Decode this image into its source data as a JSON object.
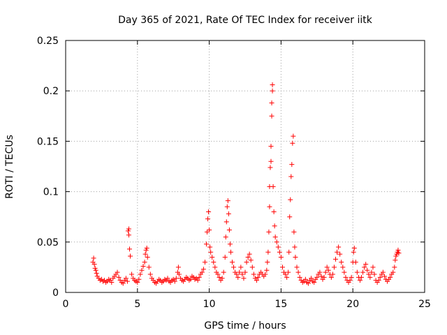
{
  "chart_data": {
    "type": "scatter",
    "title": "Day 365 of 2021, Rate Of TEC Index for receiver iitk",
    "xlabel": "GPS time / hours",
    "ylabel": "ROTI / TECUs",
    "xlim": [
      0,
      25
    ],
    "ylim": [
      0,
      0.25
    ],
    "x_ticks": [
      0,
      5,
      10,
      15,
      20,
      25
    ],
    "x_tick_labels": [
      "0",
      "5",
      "10",
      "15",
      "20",
      "25"
    ],
    "y_ticks": [
      0,
      0.05,
      0.1,
      0.15,
      0.2,
      0.25
    ],
    "y_tick_labels": [
      "0",
      "0.05",
      "0.1",
      "0.15",
      "0.2",
      "0.25"
    ],
    "grid": true,
    "marker": "plus",
    "color": "#ff0000",
    "series": [
      {
        "points": [
          [
            1.9,
            0.03
          ],
          [
            1.95,
            0.034
          ],
          [
            2.0,
            0.028
          ],
          [
            2.05,
            0.024
          ],
          [
            2.1,
            0.022
          ],
          [
            2.15,
            0.019
          ],
          [
            2.2,
            0.016
          ],
          [
            2.3,
            0.014
          ],
          [
            2.4,
            0.012
          ],
          [
            2.5,
            0.013
          ],
          [
            2.6,
            0.011
          ],
          [
            2.7,
            0.012
          ],
          [
            2.8,
            0.01
          ],
          [
            2.9,
            0.011
          ],
          [
            3.0,
            0.013
          ],
          [
            3.1,
            0.012
          ],
          [
            3.2,
            0.01
          ],
          [
            3.3,
            0.014
          ],
          [
            3.4,
            0.016
          ],
          [
            3.5,
            0.018
          ],
          [
            3.6,
            0.02
          ],
          [
            3.7,
            0.015
          ],
          [
            3.8,
            0.012
          ],
          [
            3.9,
            0.01
          ],
          [
            4.0,
            0.009
          ],
          [
            4.1,
            0.012
          ],
          [
            4.2,
            0.014
          ],
          [
            4.3,
            0.011
          ],
          [
            4.35,
            0.061
          ],
          [
            4.4,
            0.063
          ],
          [
            4.4,
            0.057
          ],
          [
            4.45,
            0.043
          ],
          [
            4.5,
            0.036
          ],
          [
            4.6,
            0.018
          ],
          [
            4.7,
            0.014
          ],
          [
            4.8,
            0.012
          ],
          [
            4.9,
            0.011
          ],
          [
            5.0,
            0.01
          ],
          [
            5.1,
            0.013
          ],
          [
            5.2,
            0.018
          ],
          [
            5.3,
            0.022
          ],
          [
            5.4,
            0.026
          ],
          [
            5.5,
            0.03
          ],
          [
            5.55,
            0.038
          ],
          [
            5.6,
            0.042
          ],
          [
            5.65,
            0.044
          ],
          [
            5.7,
            0.035
          ],
          [
            5.8,
            0.025
          ],
          [
            5.9,
            0.018
          ],
          [
            6.0,
            0.014
          ],
          [
            6.1,
            0.012
          ],
          [
            6.2,
            0.01
          ],
          [
            6.3,
            0.009
          ],
          [
            6.4,
            0.011
          ],
          [
            6.5,
            0.013
          ],
          [
            6.6,
            0.012
          ],
          [
            6.7,
            0.01
          ],
          [
            6.8,
            0.011
          ],
          [
            6.9,
            0.013
          ],
          [
            7.0,
            0.012
          ],
          [
            7.1,
            0.014
          ],
          [
            7.2,
            0.011
          ],
          [
            7.3,
            0.01
          ],
          [
            7.4,
            0.012
          ],
          [
            7.5,
            0.013
          ],
          [
            7.6,
            0.011
          ],
          [
            7.7,
            0.014
          ],
          [
            7.8,
            0.02
          ],
          [
            7.85,
            0.025
          ],
          [
            7.9,
            0.018
          ],
          [
            8.0,
            0.014
          ],
          [
            8.1,
            0.012
          ],
          [
            8.2,
            0.011
          ],
          [
            8.3,
            0.013
          ],
          [
            8.4,
            0.015
          ],
          [
            8.5,
            0.014
          ],
          [
            8.6,
            0.012
          ],
          [
            8.7,
            0.013
          ],
          [
            8.8,
            0.016
          ],
          [
            8.9,
            0.015
          ],
          [
            9.0,
            0.013
          ],
          [
            9.1,
            0.014
          ],
          [
            9.2,
            0.012
          ],
          [
            9.3,
            0.015
          ],
          [
            9.4,
            0.018
          ],
          [
            9.5,
            0.02
          ],
          [
            9.6,
            0.023
          ],
          [
            9.7,
            0.03
          ],
          [
            9.8,
            0.048
          ],
          [
            9.85,
            0.06
          ],
          [
            9.9,
            0.073
          ],
          [
            9.95,
            0.08
          ],
          [
            10.0,
            0.062
          ],
          [
            10.05,
            0.045
          ],
          [
            10.1,
            0.04
          ],
          [
            10.2,
            0.035
          ],
          [
            10.3,
            0.03
          ],
          [
            10.4,
            0.025
          ],
          [
            10.5,
            0.02
          ],
          [
            10.6,
            0.018
          ],
          [
            10.7,
            0.015
          ],
          [
            10.8,
            0.012
          ],
          [
            10.9,
            0.014
          ],
          [
            11.0,
            0.02
          ],
          [
            11.1,
            0.035
          ],
          [
            11.15,
            0.055
          ],
          [
            11.2,
            0.07
          ],
          [
            11.25,
            0.085
          ],
          [
            11.3,
            0.091
          ],
          [
            11.35,
            0.078
          ],
          [
            11.4,
            0.062
          ],
          [
            11.45,
            0.048
          ],
          [
            11.5,
            0.04
          ],
          [
            11.6,
            0.03
          ],
          [
            11.7,
            0.025
          ],
          [
            11.8,
            0.02
          ],
          [
            11.9,
            0.018
          ],
          [
            12.0,
            0.015
          ],
          [
            12.1,
            0.02
          ],
          [
            12.2,
            0.025
          ],
          [
            12.3,
            0.018
          ],
          [
            12.4,
            0.014
          ],
          [
            12.5,
            0.02
          ],
          [
            12.6,
            0.03
          ],
          [
            12.7,
            0.035
          ],
          [
            12.8,
            0.038
          ],
          [
            12.9,
            0.032
          ],
          [
            13.0,
            0.025
          ],
          [
            13.1,
            0.018
          ],
          [
            13.2,
            0.014
          ],
          [
            13.3,
            0.012
          ],
          [
            13.4,
            0.015
          ],
          [
            13.5,
            0.018
          ],
          [
            13.6,
            0.02
          ],
          [
            13.7,
            0.018
          ],
          [
            13.8,
            0.016
          ],
          [
            13.9,
            0.018
          ],
          [
            14.0,
            0.022
          ],
          [
            14.05,
            0.03
          ],
          [
            14.1,
            0.04
          ],
          [
            14.15,
            0.06
          ],
          [
            14.2,
            0.085
          ],
          [
            14.2,
            0.105
          ],
          [
            14.25,
            0.124
          ],
          [
            14.3,
            0.13
          ],
          [
            14.3,
            0.145
          ],
          [
            14.35,
            0.175
          ],
          [
            14.35,
            0.188
          ],
          [
            14.4,
            0.2
          ],
          [
            14.4,
            0.206
          ],
          [
            14.45,
            0.105
          ],
          [
            14.5,
            0.08
          ],
          [
            14.55,
            0.066
          ],
          [
            14.6,
            0.055
          ],
          [
            14.7,
            0.05
          ],
          [
            14.8,
            0.045
          ],
          [
            14.9,
            0.04
          ],
          [
            15.0,
            0.035
          ],
          [
            15.1,
            0.025
          ],
          [
            15.2,
            0.02
          ],
          [
            15.3,
            0.018
          ],
          [
            15.4,
            0.015
          ],
          [
            15.5,
            0.02
          ],
          [
            15.55,
            0.04
          ],
          [
            15.6,
            0.075
          ],
          [
            15.65,
            0.092
          ],
          [
            15.7,
            0.115
          ],
          [
            15.75,
            0.127
          ],
          [
            15.8,
            0.148
          ],
          [
            15.85,
            0.155
          ],
          [
            15.9,
            0.06
          ],
          [
            15.95,
            0.045
          ],
          [
            16.0,
            0.035
          ],
          [
            16.1,
            0.025
          ],
          [
            16.2,
            0.02
          ],
          [
            16.3,
            0.015
          ],
          [
            16.4,
            0.012
          ],
          [
            16.5,
            0.01
          ],
          [
            16.6,
            0.011
          ],
          [
            16.7,
            0.013
          ],
          [
            16.8,
            0.01
          ],
          [
            16.9,
            0.009
          ],
          [
            17.0,
            0.012
          ],
          [
            17.1,
            0.014
          ],
          [
            17.2,
            0.011
          ],
          [
            17.3,
            0.01
          ],
          [
            17.4,
            0.013
          ],
          [
            17.5,
            0.015
          ],
          [
            17.6,
            0.018
          ],
          [
            17.7,
            0.02
          ],
          [
            17.8,
            0.016
          ],
          [
            17.9,
            0.013
          ],
          [
            18.0,
            0.015
          ],
          [
            18.1,
            0.02
          ],
          [
            18.2,
            0.025
          ],
          [
            18.3,
            0.022
          ],
          [
            18.4,
            0.018
          ],
          [
            18.5,
            0.015
          ],
          [
            18.6,
            0.018
          ],
          [
            18.7,
            0.025
          ],
          [
            18.8,
            0.033
          ],
          [
            18.9,
            0.04
          ],
          [
            19.0,
            0.045
          ],
          [
            19.1,
            0.038
          ],
          [
            19.2,
            0.03
          ],
          [
            19.3,
            0.025
          ],
          [
            19.4,
            0.02
          ],
          [
            19.5,
            0.015
          ],
          [
            19.6,
            0.012
          ],
          [
            19.7,
            0.01
          ],
          [
            19.8,
            0.012
          ],
          [
            19.9,
            0.015
          ],
          [
            20.0,
            0.03
          ],
          [
            20.05,
            0.04
          ],
          [
            20.1,
            0.044
          ],
          [
            20.2,
            0.03
          ],
          [
            20.3,
            0.02
          ],
          [
            20.4,
            0.015
          ],
          [
            20.5,
            0.012
          ],
          [
            20.6,
            0.015
          ],
          [
            20.7,
            0.02
          ],
          [
            20.8,
            0.025
          ],
          [
            20.9,
            0.028
          ],
          [
            21.0,
            0.022
          ],
          [
            21.1,
            0.018
          ],
          [
            21.2,
            0.015
          ],
          [
            21.3,
            0.02
          ],
          [
            21.4,
            0.025
          ],
          [
            21.5,
            0.018
          ],
          [
            21.6,
            0.012
          ],
          [
            21.7,
            0.01
          ],
          [
            21.8,
            0.012
          ],
          [
            21.9,
            0.015
          ],
          [
            22.0,
            0.018
          ],
          [
            22.1,
            0.02
          ],
          [
            22.2,
            0.016
          ],
          [
            22.3,
            0.013
          ],
          [
            22.4,
            0.011
          ],
          [
            22.5,
            0.013
          ],
          [
            22.6,
            0.015
          ],
          [
            22.7,
            0.018
          ],
          [
            22.8,
            0.02
          ],
          [
            22.9,
            0.025
          ],
          [
            22.95,
            0.032
          ],
          [
            23.0,
            0.036
          ],
          [
            23.05,
            0.038
          ],
          [
            23.1,
            0.04
          ],
          [
            23.15,
            0.042
          ],
          [
            23.2,
            0.039
          ]
        ]
      }
    ]
  }
}
